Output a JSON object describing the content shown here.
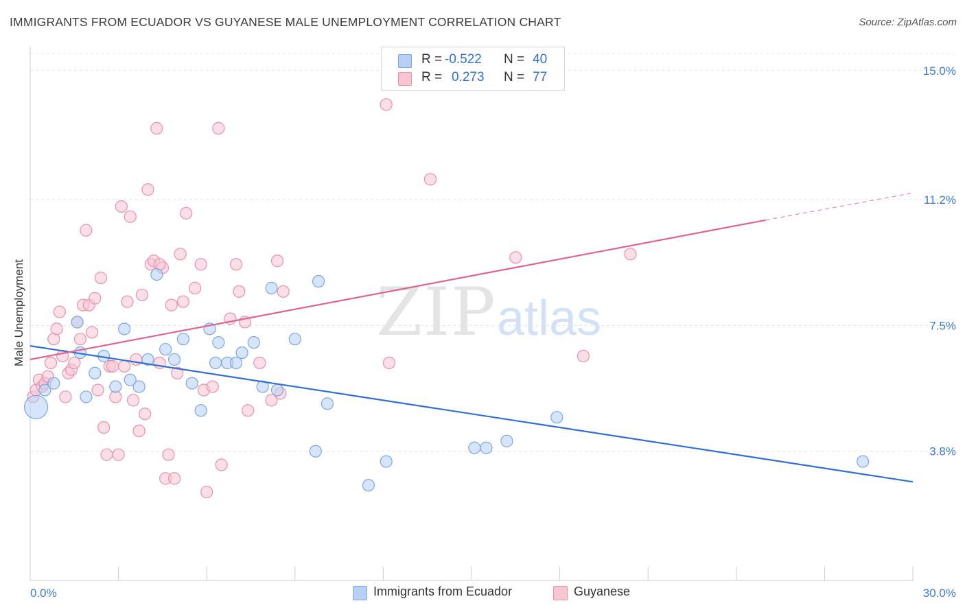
{
  "header": {
    "title": "IMMIGRANTS FROM ECUADOR VS GUYANESE MALE UNEMPLOYMENT CORRELATION CHART",
    "source": "Source: ZipAtlas.com"
  },
  "stats_box": {
    "rows": [
      {
        "r_label": "R =",
        "r_value": "-0.522",
        "n_label": "N =",
        "n_value": "40"
      },
      {
        "r_label": "R =",
        "r_value": "0.273",
        "n_label": "N =",
        "n_value": "77"
      }
    ]
  },
  "watermark": {
    "zip": "ZIP",
    "atlas": "atlas"
  },
  "legend": {
    "items": [
      {
        "label": "Immigrants from Ecuador"
      },
      {
        "label": "Guyanese"
      }
    ]
  },
  "colors": {
    "ecuador_fill": "#b7d0f5",
    "ecuador_stroke": "#7aa6e6",
    "ecuador_line": "#2f6fd6",
    "guyanese_fill": "#f8c5d3",
    "guyanese_stroke": "#ea8fab",
    "guyanese_line": "#e0638c",
    "grid": "#e3e3e3",
    "axis_text": "#3d78d6"
  },
  "chart_data": {
    "type": "scatter",
    "title": "IMMIGRANTS FROM ECUADOR VS GUYANESE MALE UNEMPLOYMENT CORRELATION CHART",
    "xlabel": "",
    "ylabel": "Male Unemployment",
    "xlim": [
      0,
      30
    ],
    "ylim": [
      0,
      15.5
    ],
    "x_tick_labels": [
      {
        "value": 0,
        "label": "0.0%"
      },
      {
        "value": 30,
        "label": "30.0%"
      }
    ],
    "y_tick_labels": [
      {
        "value": 3.8,
        "label": "3.8%"
      },
      {
        "value": 7.5,
        "label": "7.5%"
      },
      {
        "value": 11.2,
        "label": "11.2%"
      },
      {
        "value": 15.0,
        "label": "15.0%"
      }
    ],
    "grid": true,
    "legend_position": "bottom-center",
    "series": [
      {
        "name": "Immigrants from Ecuador",
        "r": -0.522,
        "n": 40,
        "trend": {
          "x0": 0,
          "y0": 6.9,
          "x1": 30,
          "y1": 2.9
        },
        "points": [
          [
            0.2,
            5.1
          ],
          [
            0.5,
            5.6
          ],
          [
            0.8,
            5.8
          ],
          [
            1.6,
            7.6
          ],
          [
            1.7,
            6.7
          ],
          [
            1.9,
            5.4
          ],
          [
            2.2,
            6.1
          ],
          [
            2.5,
            6.6
          ],
          [
            2.9,
            5.7
          ],
          [
            3.2,
            7.4
          ],
          [
            3.4,
            5.9
          ],
          [
            3.7,
            5.7
          ],
          [
            4.0,
            6.5
          ],
          [
            4.3,
            9.0
          ],
          [
            4.6,
            6.8
          ],
          [
            4.9,
            6.5
          ],
          [
            5.2,
            7.1
          ],
          [
            5.5,
            5.8
          ],
          [
            5.8,
            5.0
          ],
          [
            6.1,
            7.4
          ],
          [
            6.4,
            7.0
          ],
          [
            6.7,
            6.4
          ],
          [
            7.0,
            6.4
          ],
          [
            7.2,
            6.7
          ],
          [
            7.6,
            7.0
          ],
          [
            7.9,
            5.7
          ],
          [
            8.2,
            8.6
          ],
          [
            8.4,
            5.6
          ],
          [
            9.0,
            7.1
          ],
          [
            9.7,
            3.8
          ],
          [
            9.8,
            8.8
          ],
          [
            10.1,
            5.2
          ],
          [
            11.5,
            2.8
          ],
          [
            12.1,
            3.5
          ],
          [
            15.1,
            3.9
          ],
          [
            15.5,
            3.9
          ],
          [
            16.2,
            4.1
          ],
          [
            17.9,
            4.8
          ],
          [
            28.3,
            3.5
          ],
          [
            6.3,
            6.4
          ]
        ]
      },
      {
        "name": "Guyanese",
        "r": 0.273,
        "n": 77,
        "trend": {
          "x0": 0,
          "y0": 6.5,
          "x1": 25.0,
          "y1": 10.6
        },
        "trend_dashed": {
          "x0": 25.0,
          "y0": 10.6,
          "x1": 30,
          "y1": 11.4
        },
        "points": [
          [
            0.1,
            5.4
          ],
          [
            0.2,
            5.6
          ],
          [
            0.3,
            5.9
          ],
          [
            0.4,
            5.7
          ],
          [
            0.5,
            5.8
          ],
          [
            0.6,
            6.0
          ],
          [
            0.7,
            6.4
          ],
          [
            0.8,
            7.1
          ],
          [
            0.9,
            7.4
          ],
          [
            1.0,
            7.9
          ],
          [
            1.1,
            6.6
          ],
          [
            1.2,
            5.4
          ],
          [
            1.3,
            6.1
          ],
          [
            1.4,
            6.2
          ],
          [
            1.5,
            6.4
          ],
          [
            1.6,
            7.6
          ],
          [
            1.7,
            7.1
          ],
          [
            1.8,
            8.1
          ],
          [
            1.9,
            10.3
          ],
          [
            2.0,
            8.1
          ],
          [
            2.1,
            7.3
          ],
          [
            2.2,
            8.3
          ],
          [
            2.3,
            5.6
          ],
          [
            2.4,
            8.9
          ],
          [
            2.5,
            4.5
          ],
          [
            2.6,
            3.7
          ],
          [
            2.7,
            6.3
          ],
          [
            2.8,
            6.3
          ],
          [
            2.9,
            5.4
          ],
          [
            3.0,
            3.7
          ],
          [
            3.1,
            11.0
          ],
          [
            3.2,
            6.3
          ],
          [
            3.3,
            8.2
          ],
          [
            3.4,
            10.7
          ],
          [
            3.5,
            5.3
          ],
          [
            3.6,
            6.5
          ],
          [
            3.7,
            4.4
          ],
          [
            3.8,
            8.4
          ],
          [
            3.9,
            4.9
          ],
          [
            4.0,
            11.5
          ],
          [
            4.1,
            9.3
          ],
          [
            4.2,
            9.4
          ],
          [
            4.3,
            13.3
          ],
          [
            4.4,
            6.4
          ],
          [
            4.5,
            9.2
          ],
          [
            4.6,
            3.0
          ],
          [
            4.7,
            3.7
          ],
          [
            4.8,
            8.1
          ],
          [
            4.9,
            3.0
          ],
          [
            5.0,
            6.1
          ],
          [
            5.1,
            9.6
          ],
          [
            5.2,
            8.2
          ],
          [
            5.3,
            10.8
          ],
          [
            5.6,
            8.6
          ],
          [
            5.8,
            9.3
          ],
          [
            5.9,
            5.6
          ],
          [
            6.0,
            2.6
          ],
          [
            6.2,
            5.7
          ],
          [
            6.4,
            13.3
          ],
          [
            6.5,
            3.4
          ],
          [
            6.8,
            7.7
          ],
          [
            7.0,
            9.3
          ],
          [
            7.1,
            8.5
          ],
          [
            7.3,
            7.6
          ],
          [
            7.4,
            5.0
          ],
          [
            7.8,
            6.4
          ],
          [
            8.2,
            5.3
          ],
          [
            8.4,
            9.4
          ],
          [
            8.5,
            5.5
          ],
          [
            8.6,
            8.5
          ],
          [
            12.1,
            14.0
          ],
          [
            12.2,
            6.4
          ],
          [
            13.6,
            11.8
          ],
          [
            16.5,
            9.5
          ],
          [
            18.8,
            6.6
          ],
          [
            20.4,
            9.6
          ],
          [
            4.4,
            9.3
          ]
        ]
      }
    ]
  }
}
